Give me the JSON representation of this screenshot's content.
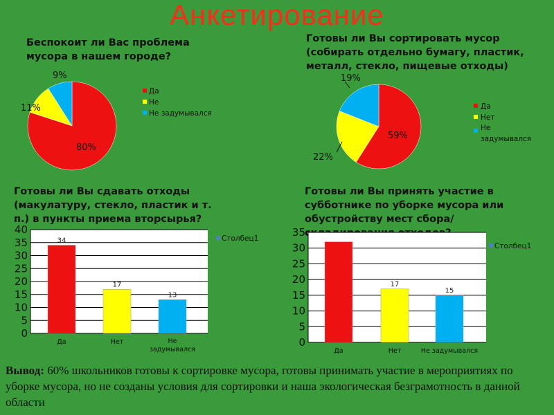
{
  "title": "Анкетирование",
  "colors": {
    "red": "#ee1111",
    "yellow": "#ffff00",
    "blue": "#00b0f0",
    "background": "#3a9b3a",
    "title": "#ff2a1a"
  },
  "chart_data": [
    {
      "type": "pie",
      "title": "Беспокоит ли Вас проблема мусора в нашем городе?",
      "categories": [
        "Да",
        "Не",
        "Не задумывался"
      ],
      "values": [
        80,
        11,
        9
      ],
      "value_labels": [
        "80%",
        "11%",
        "9%"
      ],
      "legend": [
        "Да",
        "Не",
        "Не задумывался"
      ],
      "legend_position": "right"
    },
    {
      "type": "pie",
      "title": "Готовы ли Вы сортировать мусор (собирать отдельно бумагу, пластик, металл, стекло, пищевые отходы)",
      "categories": [
        "Да",
        "Нет",
        "Не задумывался"
      ],
      "values": [
        59,
        22,
        19
      ],
      "value_labels": [
        "59%",
        "22%",
        "19%"
      ],
      "legend": [
        "Да",
        "Нет",
        "Не задумывался"
      ],
      "legend_position": "right"
    },
    {
      "type": "bar",
      "title": "Готовы ли Вы сдавать отходы (макулатуру, стекло, пластик и т. п.) в пункты приема вторсырья?",
      "categories": [
        "Да",
        "Нет",
        "Не задумывался"
      ],
      "series": [
        {
          "name": "Столбец1",
          "values": [
            34,
            17,
            13
          ]
        }
      ],
      "ylim": [
        0,
        40
      ],
      "yticks": [
        0,
        5,
        10,
        15,
        20,
        25,
        30,
        35,
        40
      ],
      "legend_position": "right"
    },
    {
      "type": "bar",
      "title": "Готовы ли Вы принять участие в субботнике по уборке мусора или обустройству мест сбора/складирования отходов?",
      "categories": [
        "Да",
        "Нет",
        "Не задумывался"
      ],
      "series": [
        {
          "name": "Столбец1",
          "values": [
            32,
            17,
            15
          ]
        }
      ],
      "value_labels": [
        "",
        "17",
        "15"
      ],
      "ylim": [
        0,
        35
      ],
      "yticks": [
        0,
        5,
        10,
        15,
        20,
        25,
        30,
        35
      ],
      "legend_position": "right"
    }
  ],
  "conclusion": {
    "label": "Вывод:",
    "text": "  60% школьников готовы к сортировке мусора, готовы принимать участие в мероприятиях по уборке мусора, но не созданы условия для сортировки и наша экологическая безграмотность в данной области"
  }
}
